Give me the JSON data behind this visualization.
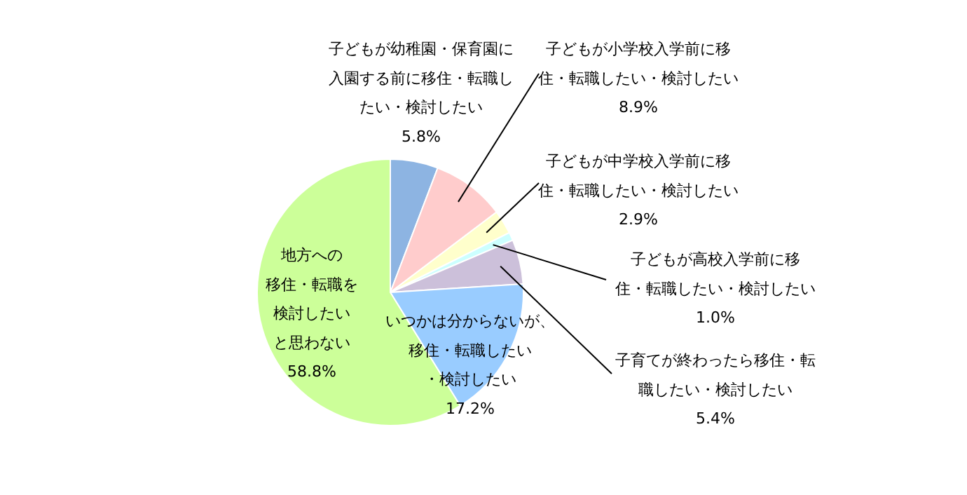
{
  "chart_data": {
    "type": "pie",
    "categories": [
      "子どもが幼稚園・保育園に入園する前に移住・転職したい・検討したい",
      "子どもが小学校入学前に移住・転職したい・検討したい",
      "子どもが中学校入学前に移住・転職したい・検討したい",
      "子どもが高校入学前に移住・転職したい・検討したい",
      "子育てが終わったら移住・転職したい・検討したい",
      "いつかは分からないが、移住・転職したい・検討したい",
      "地方への移住・転職を検討したいと思わない"
    ],
    "values": [
      5.8,
      8.9,
      2.9,
      1.0,
      5.4,
      17.2,
      58.8
    ],
    "value_labels": [
      "5.8%",
      "8.9%",
      "2.9%",
      "1.0%",
      "5.4%",
      "17.2%",
      "58.8%"
    ],
    "colors": [
      "#8db4e2",
      "#ffcccc",
      "#ffffcc",
      "#ccffff",
      "#ccc0da",
      "#99ccff",
      "#ccff99"
    ],
    "data_labels": false
  }
}
